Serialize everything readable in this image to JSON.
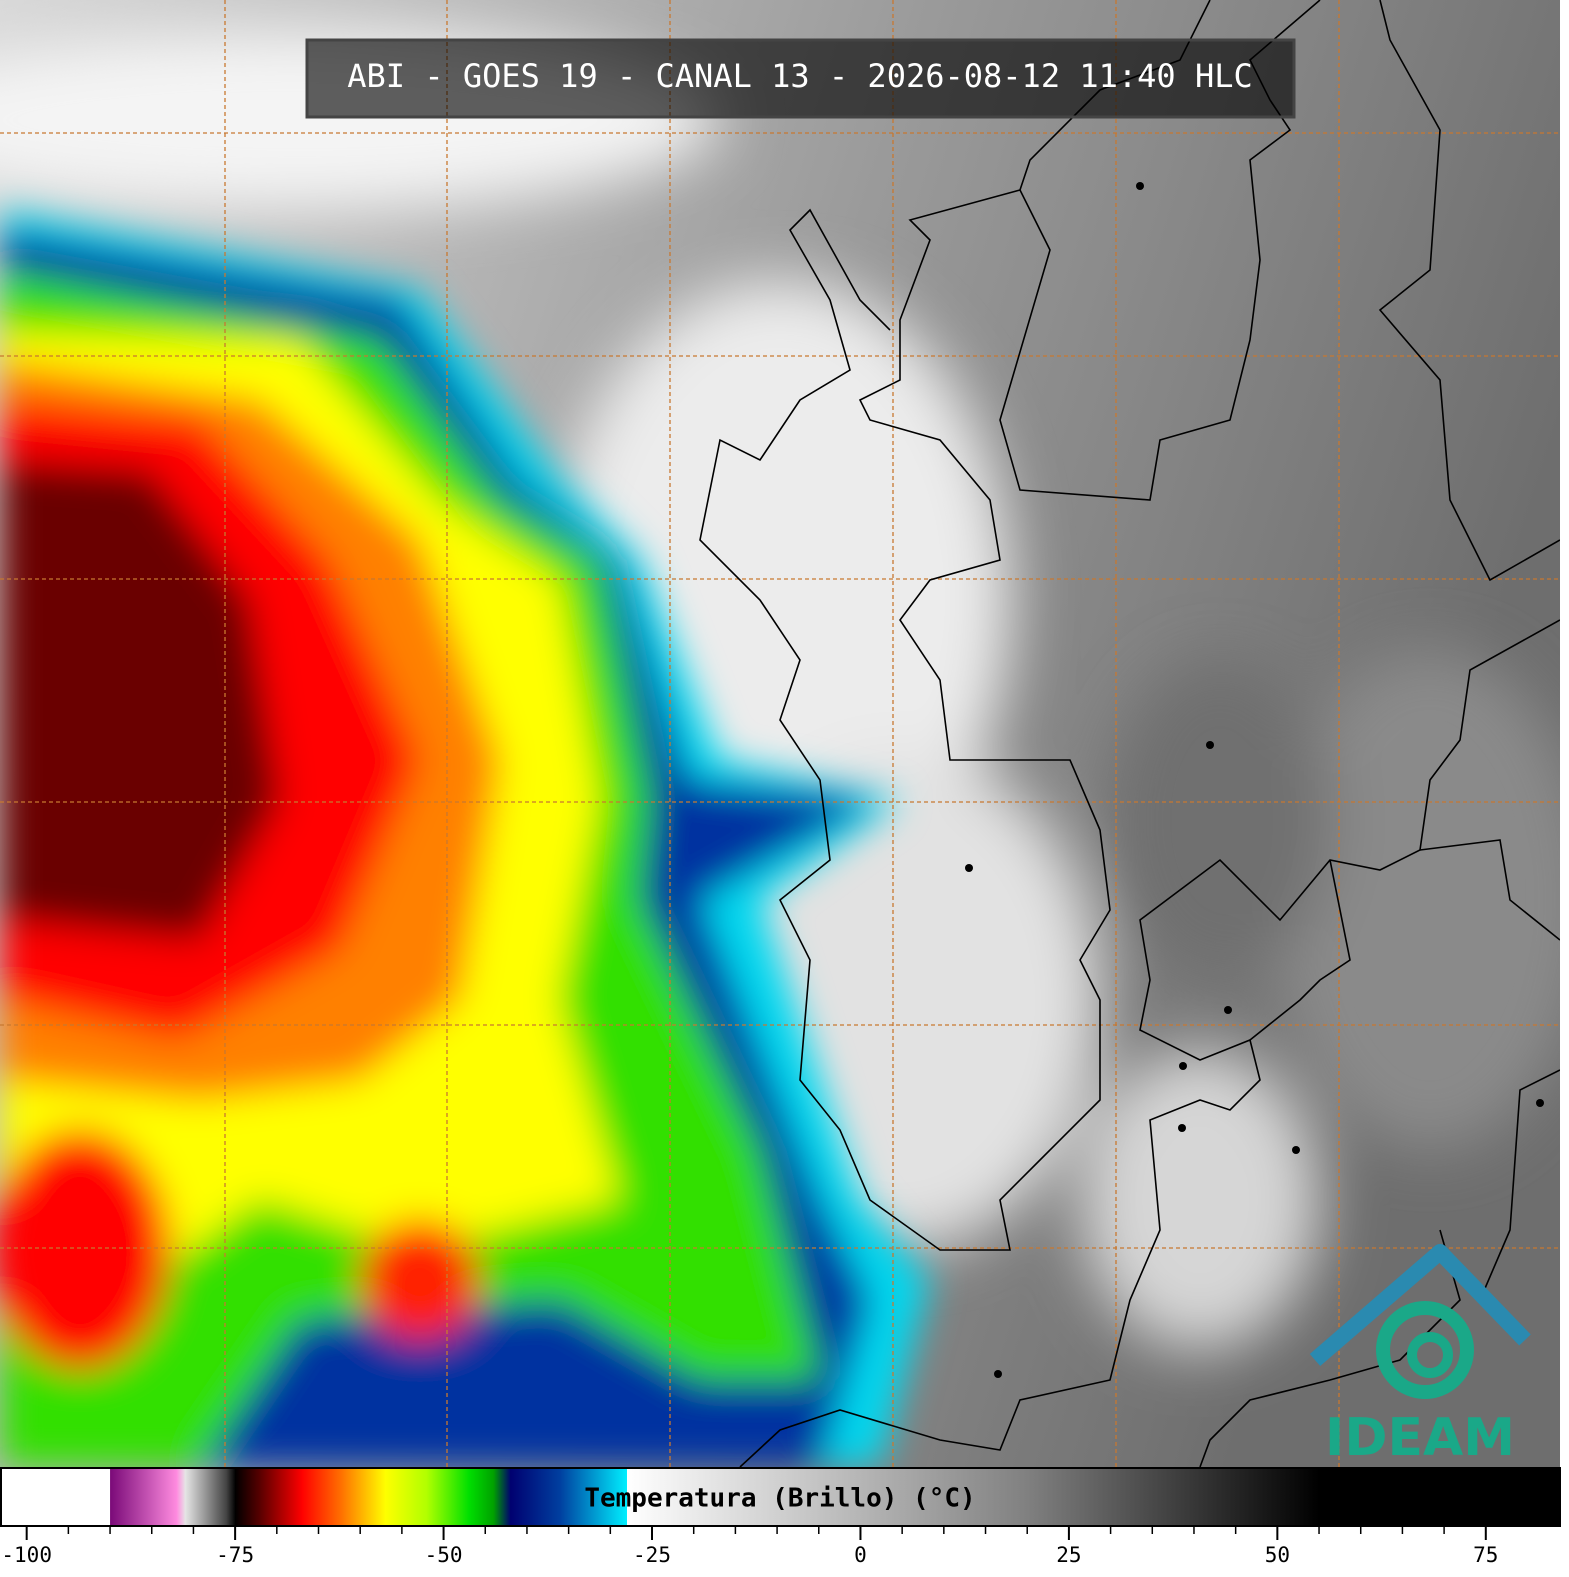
{
  "header": {
    "title": "ABI - GOES 19 - CANAL 13 - 2026-08-12 11:40 HLC"
  },
  "colorbar": {
    "label": "Temperatura (Brillo) (°C)",
    "xlim": [
      -103.2,
      83.9
    ],
    "ticks": [
      -100,
      -75,
      -50,
      -25,
      0,
      25,
      50,
      75
    ],
    "colormap": [
      {
        "value": -103.2,
        "color": "#ffffff"
      },
      {
        "value": -90,
        "color": "#ffffff"
      },
      {
        "value": -90,
        "color": "#7a0a78"
      },
      {
        "value": -82,
        "color": "#ff8ce0"
      },
      {
        "value": -81,
        "color": "#e6e6e6"
      },
      {
        "value": -76,
        "color": "#404040"
      },
      {
        "value": -75,
        "color": "#000000"
      },
      {
        "value": -72,
        "color": "#5a0000"
      },
      {
        "value": -67,
        "color": "#ff0000"
      },
      {
        "value": -62,
        "color": "#ff7800"
      },
      {
        "value": -57,
        "color": "#ffff00"
      },
      {
        "value": -52,
        "color": "#b0ff00"
      },
      {
        "value": -47,
        "color": "#00e000"
      },
      {
        "value": -44,
        "color": "#00a000"
      },
      {
        "value": -42,
        "color": "#000070"
      },
      {
        "value": -36,
        "color": "#0040a0"
      },
      {
        "value": -28,
        "color": "#00f0ff"
      },
      {
        "value": -28,
        "color": "#ffffff"
      },
      {
        "value": -10,
        "color": "#d0d0d0"
      },
      {
        "value": 20,
        "color": "#808080"
      },
      {
        "value": 55,
        "color": "#000000"
      },
      {
        "value": 83.9,
        "color": "#000000"
      }
    ]
  },
  "logo": {
    "text": "IDEAM"
  }
}
